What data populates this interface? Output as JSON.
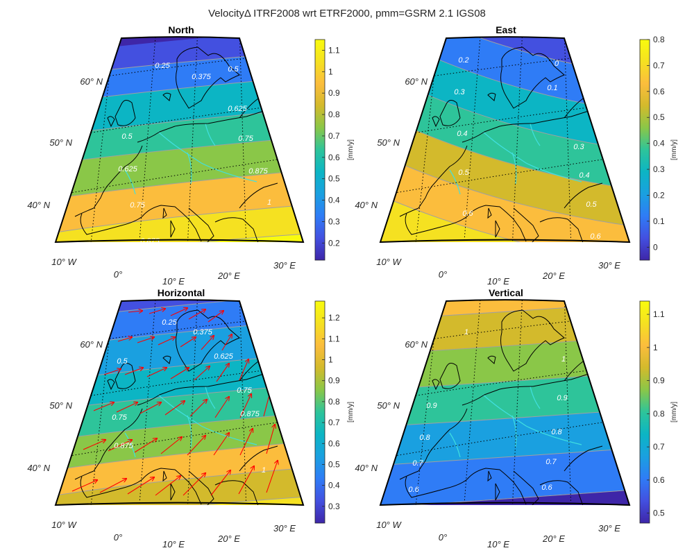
{
  "figure_title": "VelocityΔ ITRF2008 wrt ETRF2000, pmm=GSRM 2.1 IGS08",
  "colors": {
    "colormap": [
      "#3e26a8",
      "#4350e0",
      "#2f7cf6",
      "#1aa0e0",
      "#0cb5c4",
      "#2ec49a",
      "#8ac748",
      "#d3ba2c",
      "#fbbd3d",
      "#f5e121",
      "#f9fb0e"
    ],
    "coastline": "#000000",
    "rivers": "#40e0e0",
    "contour_lines": "#a0a0a0",
    "arrows": "#ff0000",
    "graticule": "#000000"
  },
  "chart_data": [
    {
      "type": "map",
      "name": "north",
      "title": "North",
      "colorbar": {
        "unit": "[mm/y]",
        "range": [
          0.12,
          1.15
        ],
        "ticks": [
          "0.2",
          "0.3",
          "0.4",
          "0.5",
          "0.6",
          "0.7",
          "0.8",
          "0.9",
          "1",
          "1.1"
        ]
      },
      "lat_labels": [
        "40° N",
        "50° N",
        "60° N"
      ],
      "lon_labels": [
        "10° W",
        "0°",
        "10° E",
        "20° E",
        "30° E"
      ],
      "contour_labels": [
        "0.25",
        "0.375",
        "0.5",
        "0.5",
        "0.625",
        "0.625",
        "0.75",
        "0.75",
        "0.875",
        "0.875",
        "1"
      ]
    },
    {
      "type": "map",
      "name": "east",
      "title": "East",
      "colorbar": {
        "unit": "[mm/y]",
        "range": [
          -0.05,
          0.8
        ],
        "ticks": [
          "0",
          "0.1",
          "0.2",
          "0.3",
          "0.4",
          "0.5",
          "0.6",
          "0.7",
          "0.8"
        ]
      },
      "lat_labels": [
        "40° N",
        "50° N",
        "60° N"
      ],
      "lon_labels": [
        "10° W",
        "0°",
        "10° E",
        "20° E",
        "30° E"
      ],
      "contour_labels": [
        "0",
        "0.1",
        "0.2",
        "0.3",
        "0.3",
        "0.4",
        "0.4",
        "0.5",
        "0.5",
        "0.6",
        "0.6",
        "0.7"
      ]
    },
    {
      "type": "map",
      "name": "horizontal",
      "title": "Horizontal",
      "colorbar": {
        "unit": "[mm/y]",
        "range": [
          0.22,
          1.28
        ],
        "ticks": [
          "0.3",
          "0.4",
          "0.5",
          "0.6",
          "0.7",
          "0.8",
          "0.9",
          "1",
          "1.1",
          "1.2"
        ]
      },
      "lat_labels": [
        "40° N",
        "50° N",
        "60° N"
      ],
      "lon_labels": [
        "10° W",
        "0°",
        "10° E",
        "20° E",
        "30° E"
      ],
      "contour_labels": [
        "0.25",
        "0.375",
        "0.5",
        "0.625",
        "0.75",
        "0.75",
        "0.875",
        "0.875",
        "1",
        "1.125"
      ],
      "vectors": "red arrows showing horizontal velocity direction, pointing north-east"
    },
    {
      "type": "map",
      "name": "vertical",
      "title": "Vertical",
      "colorbar": {
        "unit": "[mm/y]",
        "range": [
          0.47,
          1.14
        ],
        "ticks": [
          "0.5",
          "0.6",
          "0.7",
          "0.8",
          "0.9",
          "1",
          "1.1"
        ]
      },
      "lat_labels": [
        "40° N",
        "50° N",
        "60° N"
      ],
      "lon_labels": [
        "10° W",
        "0°",
        "10° E",
        "20° E",
        "30° E"
      ],
      "contour_labels": [
        "1",
        "1",
        "0.9",
        "0.9",
        "0.8",
        "0.8",
        "0.7",
        "0.7",
        "0.6",
        "0.6",
        "0.6",
        "0.6"
      ]
    }
  ]
}
